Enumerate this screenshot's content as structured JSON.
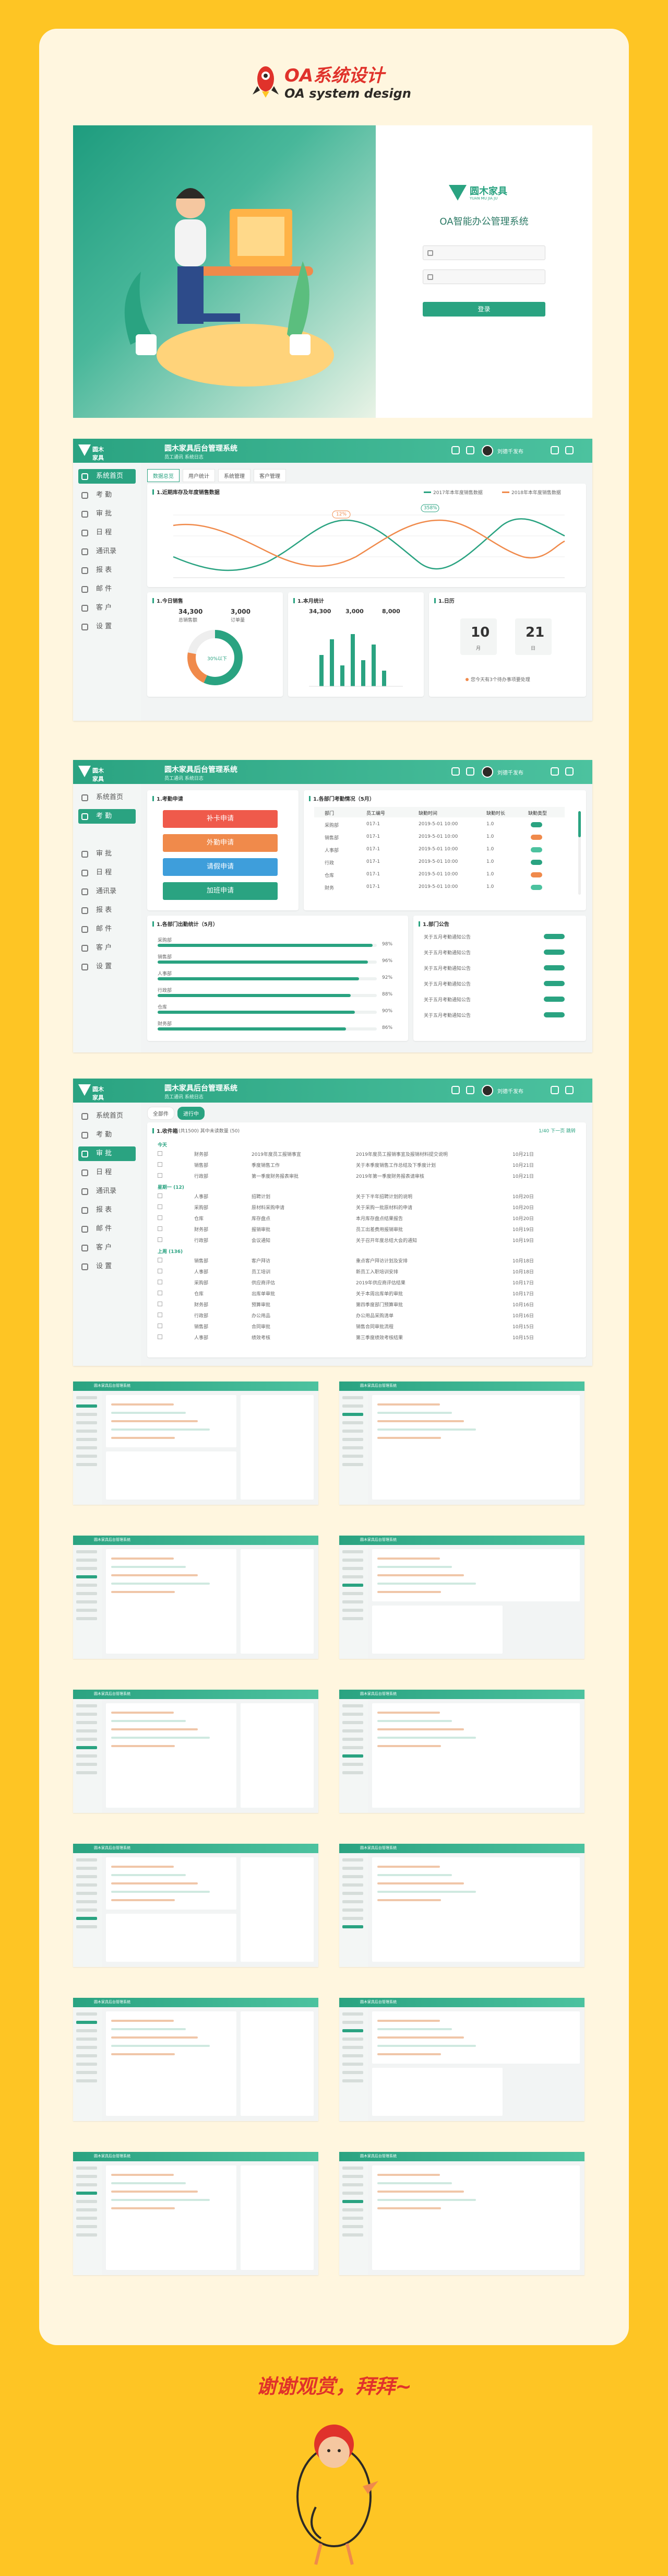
{
  "header": {
    "title_cn": "OA系统设计",
    "title_en": "OA system design"
  },
  "footer": {
    "text": "谢谢观赏，拜拜~"
  },
  "login": {
    "brand_name": "圆木家具",
    "brand_sub": "YUAN MU JIA JU",
    "title": "OA智能办公管理系统",
    "user_placeholder": "",
    "pass_placeholder": "",
    "button_label": "登录"
  },
  "app": {
    "brand": "圆木家具",
    "title": "圆木家具后台管理系统",
    "subtitle": "员工通讯 系统日志",
    "user_name": "刘德千发布"
  },
  "sidebar_dashboard": [
    {
      "label": "系统首页"
    },
    {
      "label": "考 勤"
    },
    {
      "label": "审 批"
    },
    {
      "label": "日 程"
    },
    {
      "label": "通讯录"
    },
    {
      "label": "报 表"
    },
    {
      "label": "邮 件"
    },
    {
      "label": "客 户"
    },
    {
      "label": "设 置"
    }
  ],
  "dashboard": {
    "tabs": [
      "数据总览",
      "用户统计",
      "系统管理",
      "客户管理"
    ],
    "line_title": "1.近期库存及年度销售数据",
    "stats_title": "1.今日销售",
    "stat_a_value": "34,300",
    "stat_a_label": "总销售额",
    "stat_b_value": "3,000",
    "stat_b_label": "订单量",
    "bars_title": "1.本月统计",
    "bar_a_value": "34,300",
    "bar_b_value": "3,000",
    "bar_c_value": "8,000",
    "cal_title": "1.日历",
    "cal_month": "10",
    "cal_month_label": "月",
    "cal_day": "21",
    "cal_day_label": "日",
    "cal_note": "您今天有3个待办事项要处理",
    "donut_center": "30%以下",
    "line_peak_a": "12%",
    "line_peak_b": "358%",
    "legend": [
      "2017年本年度销售数据",
      "2018年本年度销售数据"
    ]
  },
  "sidebar_attend": [
    {
      "label": "系统首页"
    },
    {
      "label": "考 勤"
    },
    {
      "label": "审 批"
    },
    {
      "label": "日 程"
    },
    {
      "label": "通讯录"
    },
    {
      "label": "报 表"
    },
    {
      "label": "邮 件"
    },
    {
      "label": "客 户"
    },
    {
      "label": "设 置"
    }
  ],
  "attend": {
    "apply_title": "1.考勤申请",
    "buttons": [
      "补卡申请",
      "外勤申请",
      "请假申请",
      "加班申请"
    ],
    "dept_title": "1.各部门考勤情况（5月）",
    "table_head": [
      "部门",
      "员工编号",
      "缺勤时间",
      "缺勤时长",
      "缺勤类型"
    ],
    "table_rows": [
      [
        "采购部",
        "017-1",
        "2019-5-01 10:00",
        "1.0",
        ""
      ],
      [
        "销售部",
        "017-1",
        "2019-5-01 10:00",
        "1.0",
        ""
      ],
      [
        "人事部",
        "017-1",
        "2019-5-01 10:00",
        "1.0",
        ""
      ],
      [
        "行政",
        "017-1",
        "2019-5-01 10:00",
        "1.0",
        ""
      ],
      [
        "仓库",
        "017-1",
        "2019-5-01 10:00",
        "1.0",
        ""
      ],
      [
        "财务",
        "017-1",
        "2019-5-01 10:00",
        "1.0",
        ""
      ]
    ],
    "ratio_title": "1.各部门出勤统计（5月）",
    "ratio_rows": [
      {
        "label": "采购部",
        "value": "98%"
      },
      {
        "label": "销售部",
        "value": "96%"
      },
      {
        "label": "人事部",
        "value": "92%"
      },
      {
        "label": "行政部",
        "value": "88%"
      },
      {
        "label": "仓库",
        "value": "90%"
      },
      {
        "label": "财务部",
        "value": "86%"
      }
    ],
    "notice_title": "1.部门公告",
    "notice_rows": [
      "关于五月考勤通知公告",
      "关于五月考勤通知公告",
      "关于五月考勤通知公告",
      "关于五月考勤通知公告",
      "关于五月考勤通知公告",
      "关于五月考勤通知公告"
    ]
  },
  "sidebar_approve": [
    {
      "label": "系统首页"
    },
    {
      "label": "考 勤"
    },
    {
      "label": "审 批"
    },
    {
      "label": "日 程"
    },
    {
      "label": "通讯录"
    },
    {
      "label": "报 表"
    },
    {
      "label": "邮 件"
    },
    {
      "label": "客 户"
    },
    {
      "label": "设 置"
    }
  ],
  "approve": {
    "tabs": [
      "全部件",
      "进行中"
    ],
    "list_title": "1.收件箱",
    "list_sub": "(共1500) 其中未读数量 (50)",
    "top_right": "1/40  下一页  跳转",
    "groups": [
      "今天",
      "星期一 (12)",
      "上周 (136)"
    ],
    "rows": [
      [
        "财务部",
        "2019年度员工报销事宜",
        "2019年度员工报销事宜及报销材料提交说明",
        "10月21日"
      ],
      [
        "销售部",
        "季度销售工作",
        "关于本季度销售工作总结及下季度计划",
        "10月21日"
      ],
      [
        "行政部",
        "第一季度财务报表审批",
        "2019年第一季度财务报表请审核",
        "10月21日"
      ],
      [
        "人事部",
        "招聘计划",
        "关于下半年招聘计划的说明",
        "10月20日"
      ],
      [
        "采购部",
        "原材料采购申请",
        "关于采购一批原材料的申请",
        "10月20日"
      ],
      [
        "仓库",
        "库存盘点",
        "本月库存盘点结果报告",
        "10月20日"
      ],
      [
        "财务部",
        "报销审批",
        "员工出差费用报销审批",
        "10月19日"
      ],
      [
        "行政部",
        "会议通知",
        "关于召开年度总结大会的通知",
        "10月19日"
      ],
      [
        "销售部",
        "客户拜访",
        "重点客户拜访计划及安排",
        "10月18日"
      ],
      [
        "人事部",
        "员工培训",
        "新员工入职培训安排",
        "10月18日"
      ],
      [
        "采购部",
        "供应商评估",
        "2019年供应商评估结果",
        "10月17日"
      ],
      [
        "仓库",
        "出库单审批",
        "关于本周出库单的审批",
        "10月17日"
      ],
      [
        "财务部",
        "预算审批",
        "第四季度部门预算审批",
        "10月16日"
      ],
      [
        "行政部",
        "办公用品",
        "办公用品采购清单",
        "10月16日"
      ],
      [
        "销售部",
        "合同审批",
        "销售合同审批流程",
        "10月15日"
      ],
      [
        "人事部",
        "绩效考核",
        "第三季度绩效考核结果",
        "10月15日"
      ]
    ]
  },
  "thumbs": [
    {
      "title": "圆木家具后台管理系统"
    },
    {
      "title": "圆木家具后台管理系统"
    },
    {
      "title": "圆木家具后台管理系统"
    },
    {
      "title": "圆木家具后台管理系统"
    },
    {
      "title": "圆木家具后台管理系统"
    },
    {
      "title": "圆木家具后台管理系统"
    },
    {
      "title": "圆木家具后台管理系统"
    },
    {
      "title": "圆木家具后台管理系统"
    },
    {
      "title": "圆木家具后台管理系统"
    },
    {
      "title": "圆木家具后台管理系统"
    },
    {
      "title": "圆木家具后台管理系统"
    },
    {
      "title": "圆木家具后台管理系统"
    }
  ],
  "colors": {
    "accent": "#2AA381",
    "orange": "#F08A4B",
    "red": "#E0322B",
    "yellow": "#FEC524"
  }
}
